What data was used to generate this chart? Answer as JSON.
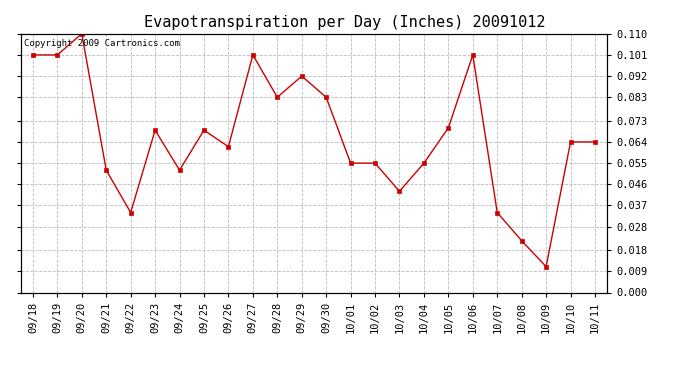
{
  "title": "Evapotranspiration per Day (Inches) 20091012",
  "copyright_text": "Copyright 2009 Cartronics.com",
  "x_labels": [
    "09/18",
    "09/19",
    "09/20",
    "09/21",
    "09/22",
    "09/23",
    "09/24",
    "09/25",
    "09/26",
    "09/27",
    "09/28",
    "09/29",
    "09/30",
    "10/01",
    "10/02",
    "10/03",
    "10/04",
    "10/05",
    "10/06",
    "10/07",
    "10/08",
    "10/09",
    "10/10",
    "10/11"
  ],
  "y_values": [
    0.101,
    0.101,
    0.11,
    0.052,
    0.034,
    0.069,
    0.052,
    0.069,
    0.062,
    0.101,
    0.083,
    0.092,
    0.083,
    0.055,
    0.055,
    0.043,
    0.055,
    0.07,
    0.101,
    0.034,
    0.022,
    0.011,
    0.064,
    0.064
  ],
  "line_color": "#cc0000",
  "marker": "s",
  "marker_size": 2.5,
  "marker_color": "#cc0000",
  "background_color": "#ffffff",
  "grid_color": "#bbbbbb",
  "ylim": [
    0.0,
    0.11
  ],
  "yticks": [
    0.0,
    0.009,
    0.018,
    0.028,
    0.037,
    0.046,
    0.055,
    0.064,
    0.073,
    0.083,
    0.092,
    0.101,
    0.11
  ],
  "title_fontsize": 11,
  "tick_fontsize": 7.5,
  "copyright_fontsize": 6.5
}
